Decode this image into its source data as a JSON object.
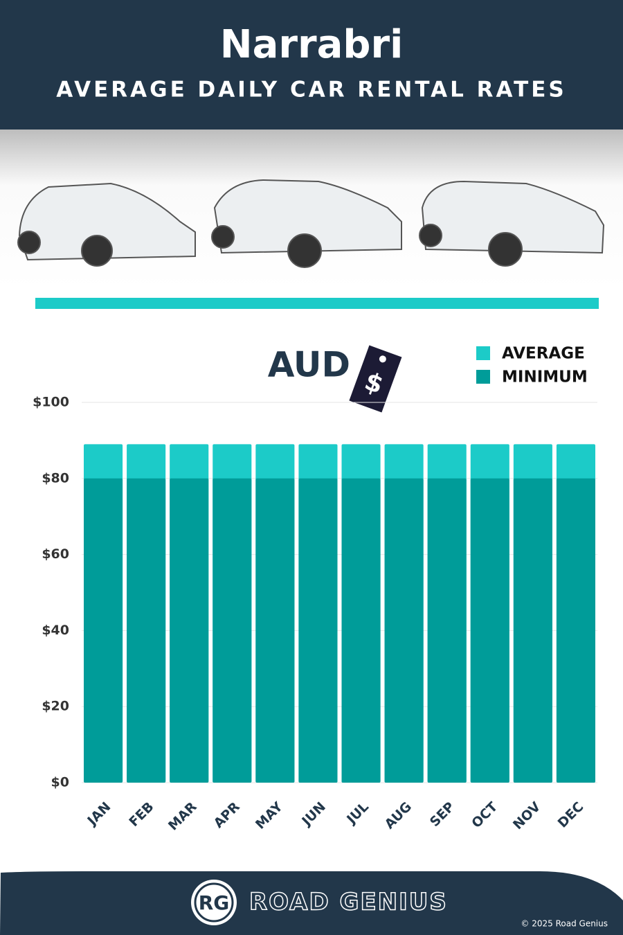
{
  "chart_data": {
    "type": "bar",
    "title": "Narrabri",
    "subtitle": "AVERAGE DAILY CAR RENTAL RATES",
    "currency": "AUD",
    "currency_symbol": "$",
    "categories": [
      "JAN",
      "FEB",
      "MAR",
      "APR",
      "MAY",
      "JUN",
      "JUL",
      "AUG",
      "SEP",
      "OCT",
      "NOV",
      "DEC"
    ],
    "series": [
      {
        "name": "AVERAGE",
        "color": "#1ccbc8",
        "values": [
          89,
          89,
          89,
          89,
          89,
          89,
          89,
          89,
          89,
          89,
          89,
          89
        ]
      },
      {
        "name": "MINIMUM",
        "color": "#009c99",
        "values": [
          80,
          80,
          80,
          80,
          80,
          80,
          80,
          80,
          80,
          80,
          80,
          80
        ]
      }
    ],
    "ylim": [
      0,
      100
    ],
    "yticks": [
      {
        "value": 0,
        "label": "$0"
      },
      {
        "value": 20,
        "label": "$20"
      },
      {
        "value": 40,
        "label": "$40"
      },
      {
        "value": 60,
        "label": "$60"
      },
      {
        "value": 80,
        "label": "$80"
      },
      {
        "value": 100,
        "label": "$100"
      }
    ],
    "grid": true,
    "legend": "upper right"
  },
  "footer": {
    "logo": "RG",
    "brand": "ROAD GENIUS",
    "copyright": "© 2025 Road Genius"
  }
}
